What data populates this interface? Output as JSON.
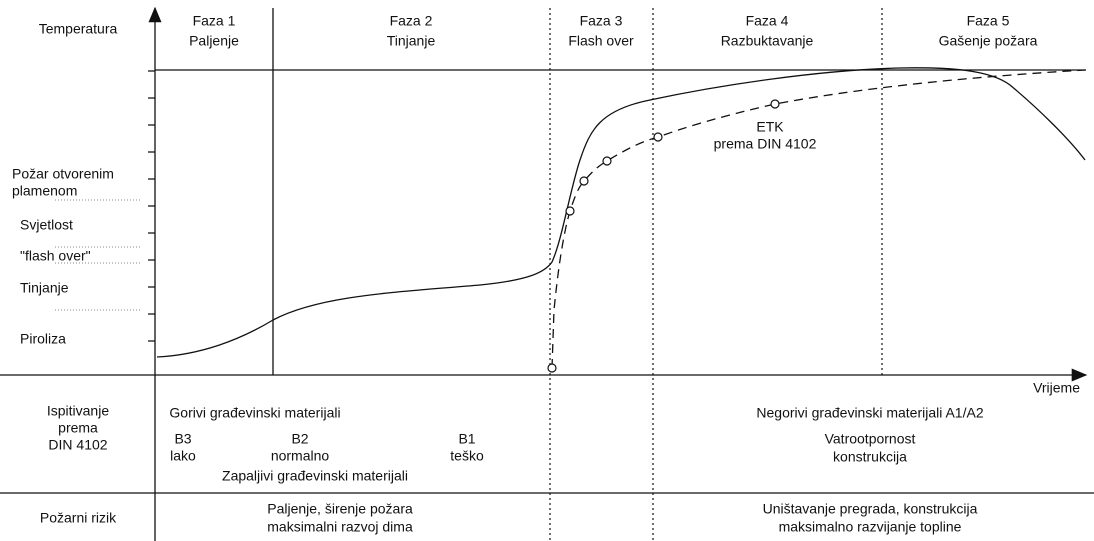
{
  "y_axis_label": "Temperatura",
  "x_axis_label": "Vrijeme",
  "phases": [
    {
      "name": "Faza 1",
      "desc": "Paljenje"
    },
    {
      "name": "Faza 2",
      "desc": "Tinjanje"
    },
    {
      "name": "Faza 3",
      "desc": "Flash over"
    },
    {
      "name": "Faza 4",
      "desc": "Razbuktavanje"
    },
    {
      "name": "Faza 5",
      "desc": "Gašenje požara"
    }
  ],
  "levels": [
    [
      "Požar otvorenim",
      "plamenom"
    ],
    [
      "Svjetlost"
    ],
    [
      "\"flash over\""
    ],
    [
      "Tinjanje"
    ],
    [
      "Piroliza"
    ]
  ],
  "curve_label": [
    "ETK",
    "prema DIN 4102"
  ],
  "testing": {
    "label": [
      "Ispitivanje",
      "prema",
      "DIN 4102"
    ],
    "combustible": "Gorivi građevinski materijali",
    "classes": [
      [
        "B3",
        "lako"
      ],
      [
        "B2",
        "normalno"
      ],
      [
        "B1",
        "teško"
      ]
    ],
    "flammable": "Zapaljivi građevinski materijali",
    "noncombustible": "Negorivi građevinski materijali A1/A2",
    "resistance": [
      "Vatrootpornost",
      "konstrukcija"
    ]
  },
  "risk": {
    "label": "Požarni rizik",
    "early": [
      "Paljenje, širenje požara",
      "maksimalni razvoj dima"
    ],
    "late": [
      "Uništavanje pregrada, konstrukcija",
      "maksimalno razvijanje topline"
    ]
  }
}
